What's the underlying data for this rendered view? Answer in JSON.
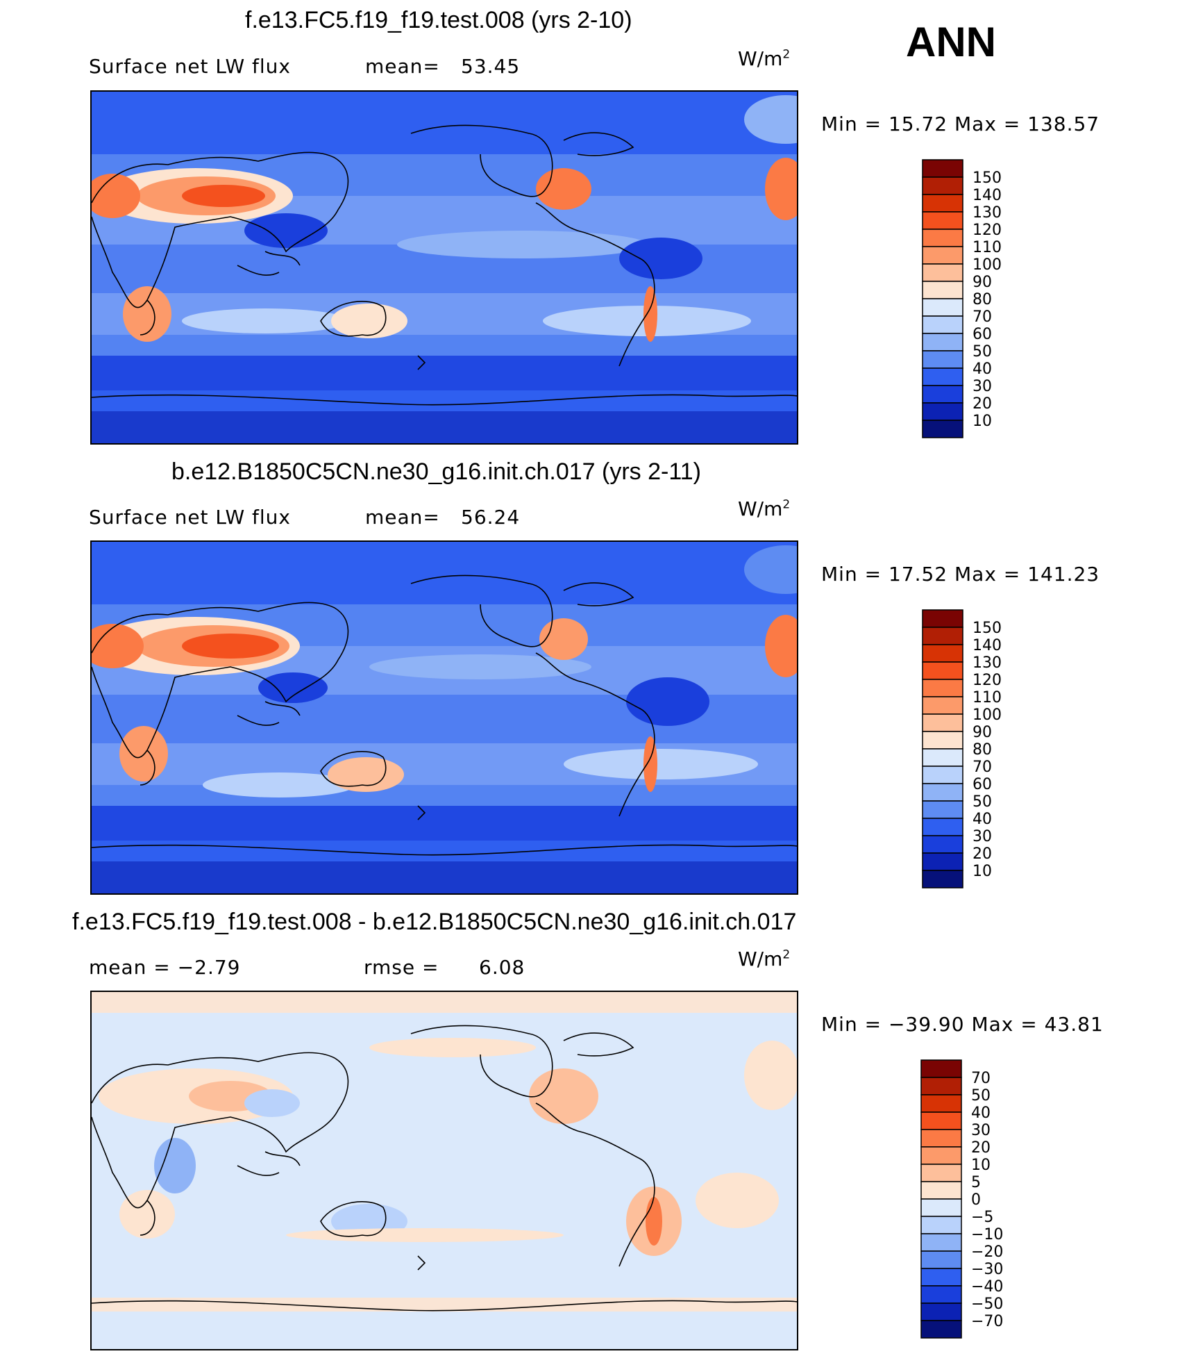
{
  "figure": {
    "season": "ANN",
    "panels": [
      {
        "title": "f.e13.FC5.f19_f19.test.008 (yrs 2-10)",
        "left_label": "Surface  net  LW  flux",
        "stat_label": "mean=",
        "stat_value": "53.45",
        "stat2_label": "",
        "stat2_value": "",
        "units": "W/m",
        "units_sup": "2",
        "min_max": "Min  =    15.72  Max  =  138.57",
        "colorbar": {
          "levels": [
            "150",
            "140",
            "130",
            "120",
            "110",
            "100",
            "90",
            "80",
            "70",
            "60",
            "50",
            "40",
            "30",
            "20",
            "10"
          ],
          "colors": [
            "#7a0403",
            "#b11f05",
            "#d73305",
            "#f4511e",
            "#fb7a45",
            "#fc9a6a",
            "#fdbf9b",
            "#fde4d0",
            "#dbe9fb",
            "#b9d2fb",
            "#8fb3f6",
            "#5e8cf2",
            "#2f5ff0",
            "#1a3fdc",
            "#0c22b4",
            "#06117a"
          ]
        }
      },
      {
        "title": "b.e12.B1850C5CN.ne30_g16.init.ch.017 (yrs 2-11)",
        "left_label": "Surface  net  LW  flux",
        "stat_label": "mean=",
        "stat_value": "56.24",
        "stat2_label": "",
        "stat2_value": "",
        "units": "W/m",
        "units_sup": "2",
        "min_max": "Min  =    17.52  Max  =  141.23",
        "colorbar": {
          "levels": [
            "150",
            "140",
            "130",
            "120",
            "110",
            "100",
            "90",
            "80",
            "70",
            "60",
            "50",
            "40",
            "30",
            "20",
            "10"
          ],
          "colors": [
            "#7a0403",
            "#b11f05",
            "#d73305",
            "#f4511e",
            "#fb7a45",
            "#fc9a6a",
            "#fdbf9b",
            "#fde4d0",
            "#dbe9fb",
            "#b9d2fb",
            "#8fb3f6",
            "#5e8cf2",
            "#2f5ff0",
            "#1a3fdc",
            "#0c22b4",
            "#06117a"
          ]
        }
      },
      {
        "title": "f.e13.FC5.f19_f19.test.008 - b.e12.B1850C5CN.ne30_g16.init.ch.017",
        "left_label": "mean  =    −2.79",
        "stat_label": "rmse  =",
        "stat_value": "6.08",
        "stat2_label": "",
        "stat2_value": "",
        "units": "W/m",
        "units_sup": "2",
        "min_max": "Min  = −39.90  Max  =    43.81",
        "colorbar": {
          "levels": [
            "70",
            "50",
            "40",
            "30",
            "20",
            "10",
            "5",
            "0",
            "−5",
            "−10",
            "−20",
            "−30",
            "−40",
            "−50",
            "−70"
          ],
          "colors": [
            "#7a0403",
            "#b11f05",
            "#d73305",
            "#f4511e",
            "#fb7a45",
            "#fc9a6a",
            "#fdbf9b",
            "#fde4d0",
            "#dbe9fb",
            "#b9d2fb",
            "#8fb3f6",
            "#5e8cf2",
            "#2f5ff0",
            "#1a3fdc",
            "#0c22b4",
            "#06117a"
          ]
        }
      }
    ]
  },
  "chart_data": [
    {
      "type": "heatmap",
      "title": "f.e13.FC5.f19_f19.test.008 (yrs 2-10)",
      "variable": "Surface  net  LW  flux",
      "units": "W/m2",
      "mean": 53.45,
      "min": 15.72,
      "max": 138.57,
      "contour_levels": [
        10,
        20,
        30,
        40,
        50,
        60,
        70,
        80,
        90,
        100,
        110,
        120,
        130,
        140,
        150
      ]
    },
    {
      "type": "heatmap",
      "title": "b.e12.B1850C5CN.ne30_g16.init.ch.017 (yrs 2-11)",
      "variable": "Surface  net  LW  flux",
      "units": "W/m2",
      "mean": 56.24,
      "min": 17.52,
      "max": 141.23,
      "contour_levels": [
        10,
        20,
        30,
        40,
        50,
        60,
        70,
        80,
        90,
        100,
        110,
        120,
        130,
        140,
        150
      ]
    },
    {
      "type": "heatmap",
      "title": "f.e13.FC5.f19_f19.test.008 - b.e12.B1850C5CN.ne30_g16.init.ch.017",
      "units": "W/m2",
      "mean": -2.79,
      "rmse": 6.08,
      "min": -39.9,
      "max": 43.81,
      "contour_levels": [
        -70,
        -50,
        -40,
        -30,
        -20,
        -10,
        -5,
        0,
        5,
        10,
        20,
        30,
        40,
        50,
        70
      ]
    }
  ]
}
